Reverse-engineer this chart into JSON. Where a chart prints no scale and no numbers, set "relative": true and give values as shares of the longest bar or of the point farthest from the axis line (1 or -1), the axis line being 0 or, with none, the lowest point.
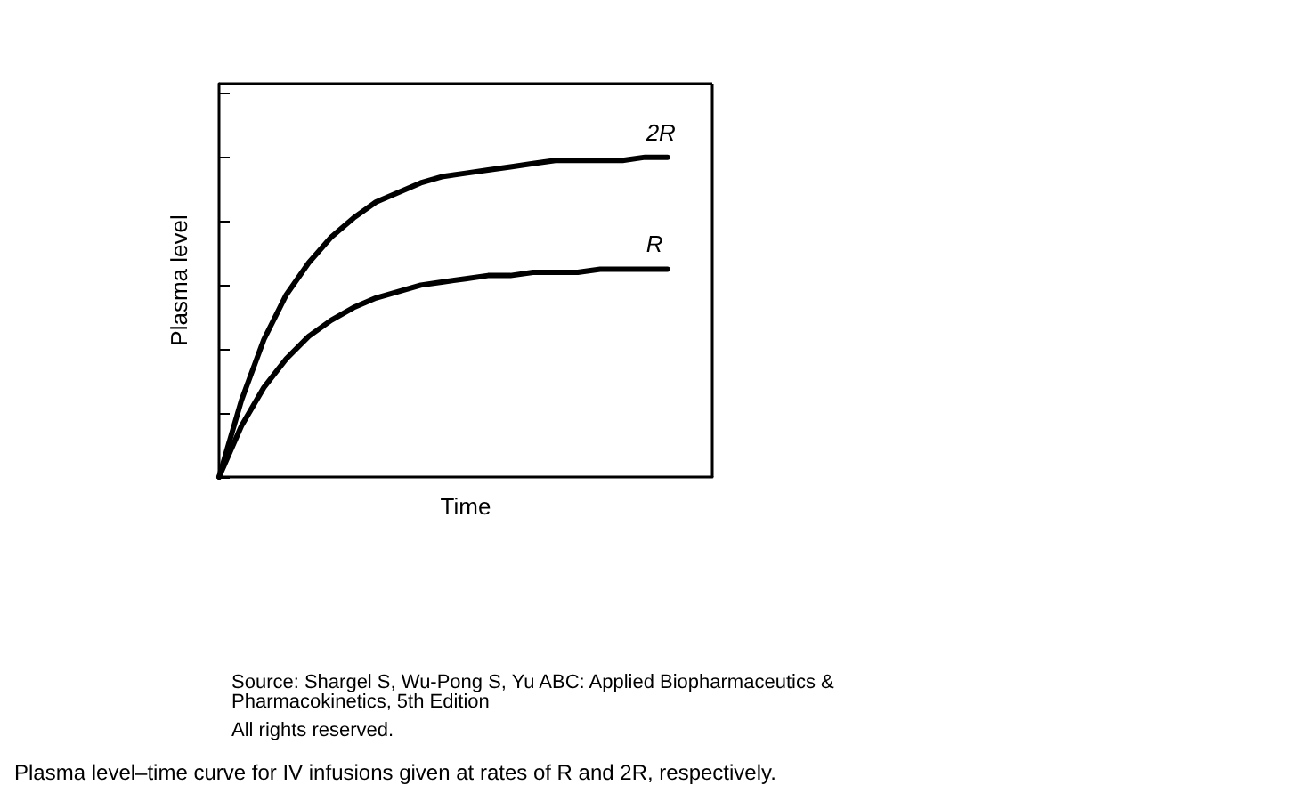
{
  "chart_data": {
    "type": "line",
    "relative": true,
    "xlabel": "Time",
    "ylabel": "Plasma level",
    "categories": [
      null,
      null,
      null,
      null,
      null,
      null,
      null,
      null,
      null,
      null,
      null,
      null,
      null,
      null,
      null,
      null,
      null,
      null,
      null,
      null,
      null,
      null,
      null
    ],
    "series": [
      {
        "name": "2R",
        "color": "#000000",
        "values": [
          0,
          0.24,
          0.43,
          0.57,
          0.67,
          0.75,
          0.81,
          0.86,
          0.89,
          0.92,
          0.94,
          0.95,
          0.96,
          0.97,
          0.98,
          0.99,
          0.99,
          0.99,
          0.99,
          1,
          1,
          null,
          null
        ]
      },
      {
        "name": "R",
        "color": "#000000",
        "values": [
          0,
          0.16,
          0.28,
          0.37,
          0.44,
          0.49,
          0.53,
          0.56,
          0.58,
          0.6,
          0.61,
          0.62,
          0.63,
          0.63,
          0.64,
          0.64,
          0.64,
          0.65,
          0.65,
          0.65,
          0.65,
          null,
          null
        ]
      }
    ],
    "legend": false,
    "grid": false,
    "marker": "none",
    "line_style": "solid",
    "annotations": [
      "Source: Shargel S, Wu-Pong S, Yu ABC: Applied Biopharmaceutics & Pharmacokinetics, 5th Edition",
      "All rights reserved.",
      "Plasma level–time curve for IV infusions given at rates of R and 2R, respectively."
    ]
  }
}
